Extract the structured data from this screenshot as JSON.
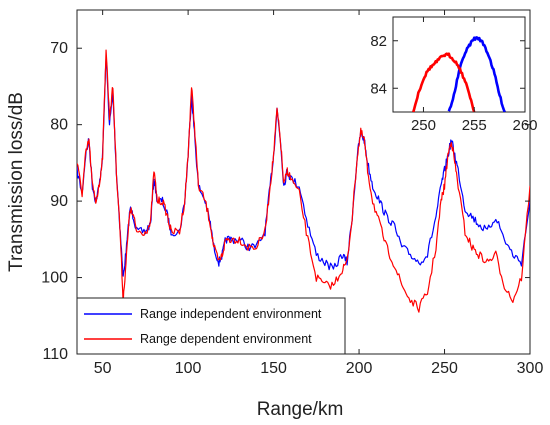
{
  "chart_data": [
    {
      "type": "line",
      "xlabel": "Range/km",
      "ylabel": "Transmission loss/dB",
      "xlim": [
        35,
        300
      ],
      "ylim": [
        65,
        110
      ],
      "y_reversed": true,
      "x_ticks": [
        50,
        100,
        150,
        200,
        250,
        300
      ],
      "y_ticks": [
        70,
        80,
        90,
        100,
        110
      ],
      "grid": false,
      "legend_position": "bottom-left",
      "series": [
        {
          "name": "Range independent environment",
          "color": "#0000ff",
          "x": [
            35,
            38,
            40,
            42,
            44,
            46,
            48,
            50,
            52,
            54,
            56,
            58,
            60,
            62,
            64,
            66,
            68,
            70,
            75,
            78,
            80,
            82,
            85,
            88,
            90,
            95,
            98,
            100,
            102,
            104,
            106,
            110,
            113,
            115,
            118,
            120,
            122,
            125,
            130,
            135,
            140,
            145,
            148,
            150,
            152,
            154,
            156,
            158,
            160,
            165,
            170,
            175,
            180,
            185,
            190,
            193,
            196,
            199,
            201,
            203,
            205,
            208,
            212,
            216,
            220,
            225,
            230,
            235,
            240,
            245,
            248,
            250,
            252,
            254,
            256,
            258,
            262,
            266,
            270,
            275,
            280,
            285,
            290,
            295,
            300
          ],
          "y": [
            86,
            89,
            84,
            82,
            88,
            90,
            88,
            84,
            71,
            80,
            76,
            86,
            93,
            100,
            96,
            91,
            92,
            94,
            94,
            93,
            87,
            90,
            90,
            92,
            94,
            94,
            90,
            84,
            76,
            82,
            88,
            90,
            93,
            96,
            98,
            97,
            95,
            95,
            95,
            96,
            96,
            94,
            88,
            84,
            78,
            82,
            88,
            86,
            87,
            88,
            93,
            97,
            98,
            99,
            97,
            98,
            92,
            84,
            81,
            82,
            85,
            88,
            90,
            92,
            93,
            96,
            97,
            98,
            97,
            92,
            88,
            86,
            84,
            82,
            84,
            86,
            91,
            92,
            93,
            94,
            92,
            95,
            97,
            98,
            90
          ]
        },
        {
          "name": "Range dependent environment",
          "color": "#ff0000",
          "x": [
            35,
            38,
            40,
            42,
            44,
            46,
            48,
            50,
            52,
            54,
            56,
            58,
            60,
            62,
            64,
            66,
            68,
            70,
            75,
            78,
            80,
            82,
            85,
            88,
            90,
            95,
            98,
            100,
            102,
            104,
            106,
            110,
            113,
            115,
            118,
            120,
            122,
            125,
            130,
            135,
            140,
            145,
            148,
            150,
            152,
            154,
            156,
            158,
            160,
            165,
            170,
            175,
            180,
            185,
            190,
            193,
            196,
            199,
            201,
            203,
            205,
            208,
            212,
            216,
            220,
            225,
            230,
            235,
            240,
            245,
            248,
            250,
            252,
            254,
            256,
            258,
            262,
            266,
            270,
            275,
            280,
            285,
            290,
            295,
            300
          ],
          "y": [
            85,
            89,
            84,
            82,
            88,
            90,
            88,
            84,
            70,
            79,
            75,
            86,
            93,
            103,
            97,
            91,
            92,
            94,
            94,
            93,
            86,
            90,
            90,
            92,
            94,
            94,
            90,
            84,
            75,
            81,
            88,
            90,
            93,
            96,
            98,
            97,
            95,
            95,
            95,
            96,
            96,
            94,
            88,
            84,
            78,
            82,
            88,
            86,
            87,
            89,
            95,
            100,
            101,
            101,
            99,
            98,
            92,
            84,
            81,
            82,
            86,
            90,
            93,
            96,
            98,
            101,
            103,
            104,
            102,
            96,
            90,
            88,
            84,
            82,
            85,
            88,
            94,
            96,
            97,
            98,
            97,
            101,
            103,
            100,
            88
          ]
        }
      ]
    },
    {
      "type": "line",
      "title": "",
      "xlim": [
        247,
        260
      ],
      "ylim": [
        81,
        85
      ],
      "y_reversed": true,
      "x_ticks": [
        250,
        255,
        260
      ],
      "y_ticks": [
        82,
        84
      ],
      "series": [
        {
          "name": "Range independent environment",
          "color": "#0000ff",
          "x": [
            252.5,
            253,
            253.5,
            254,
            254.5,
            255,
            255.5,
            256,
            256.5,
            257,
            257.5,
            258
          ],
          "y": [
            85.0,
            84.3,
            83.3,
            82.6,
            82.2,
            81.9,
            81.9,
            82.2,
            82.7,
            83.4,
            84.3,
            85.0
          ]
        },
        {
          "name": "Range dependent environment",
          "color": "#ff0000",
          "x": [
            249,
            249.5,
            250,
            250.5,
            251,
            251.5,
            252,
            252.5,
            253,
            253.5,
            254,
            254.5,
            255
          ],
          "y": [
            85.0,
            84.2,
            83.6,
            83.2,
            83.0,
            82.8,
            82.6,
            82.6,
            82.8,
            83.1,
            83.6,
            84.2,
            85.0
          ]
        }
      ]
    }
  ]
}
